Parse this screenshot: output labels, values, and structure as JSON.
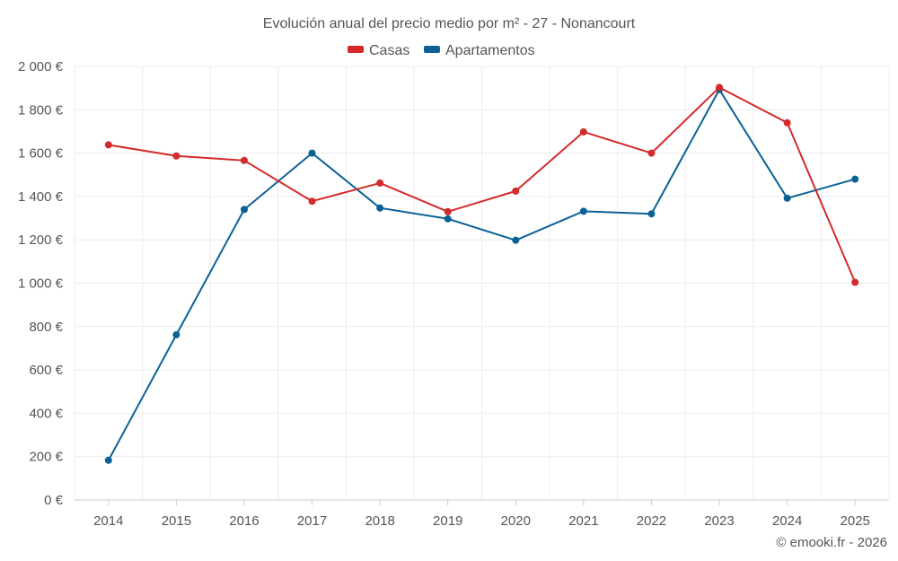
{
  "chart_data": {
    "type": "line",
    "title": "Evolución anual del precio medio por m² - 27 - Nonancourt",
    "categories": [
      "2014",
      "2015",
      "2016",
      "2017",
      "2018",
      "2019",
      "2020",
      "2021",
      "2022",
      "2023",
      "2024",
      "2025"
    ],
    "series": [
      {
        "name": "Casas",
        "color": "#d42a2a",
        "values": [
          1638,
          1587,
          1566,
          1378,
          1462,
          1330,
          1425,
          1698,
          1600,
          1903,
          1740,
          1004
        ]
      },
      {
        "name": "Apartamentos",
        "color": "#0b6196",
        "values": [
          183,
          762,
          1340,
          1600,
          1347,
          1297,
          1198,
          1332,
          1320,
          1893,
          1392,
          1480
        ]
      }
    ],
    "ylim": [
      0,
      2000
    ],
    "yticks": [
      0,
      200,
      400,
      600,
      800,
      1000,
      1200,
      1400,
      1600,
      1800,
      2000
    ],
    "ytick_labels": [
      "0 €",
      "200 €",
      "400 €",
      "600 €",
      "800 €",
      "1 000 €",
      "1 200 €",
      "1 400 €",
      "1 600 €",
      "1 800 €",
      "2 000 €"
    ],
    "xlabel": "",
    "ylabel": "",
    "legend_position": "top-center",
    "grid": true
  },
  "credit": "© emooki.fr - 2026"
}
